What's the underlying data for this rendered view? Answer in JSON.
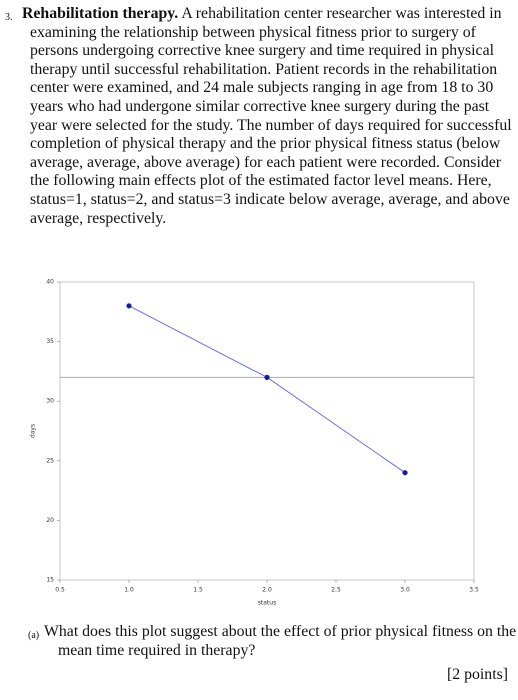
{
  "question": {
    "number": "3.",
    "title": "Rehabilitation therapy.",
    "body": "A rehabilitation center researcher was interested in examining the relationship between physical fitness prior to surgery of persons undergoing corrective knee surgery and time required in physical therapy until successful rehabilitation. Patient records in the rehabilitation center were examined, and 24 male subjects ranging in age from 18 to 30 years who had undergone similar corrective knee surgery during the past year were selected for the study. The number of days required for successful completion of physical therapy and the prior physical fitness status (below average, average, above average) for each patient were recorded. Consider the following main effects plot of the estimated factor level means. Here, status=1, status=2, and status=3 indicate below average, average, and above average, respectively."
  },
  "chart_data": {
    "type": "line",
    "x_label": "status",
    "y_label": "days",
    "series": [
      {
        "x": [
          1,
          2,
          3
        ],
        "values": [
          38,
          32,
          24
        ],
        "color": "#6a6af0",
        "marker_color": "#1020a0"
      }
    ],
    "reference_line": 32,
    "reference_color": "#aaaaaa",
    "xlim": [
      0.5,
      3.5
    ],
    "xticks": [
      0.5,
      {
        "value": 1,
        "label": "1.0"
      },
      1.5,
      {
        "value": 2,
        "label": "2.0"
      },
      2.5,
      {
        "value": 3,
        "label": "3.0"
      },
      3.5
    ],
    "ylim": [
      15,
      40
    ],
    "yticks": [
      15,
      20,
      25,
      30,
      35,
      40
    ],
    "grid": false
  },
  "part_a": {
    "label": "(a)",
    "text": "What does this plot suggest about the effect of prior physical fitness on the mean time required in therapy?",
    "points": "[2 points]"
  }
}
